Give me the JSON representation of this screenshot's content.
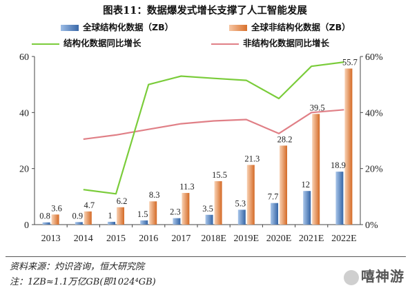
{
  "title": "图表11：数据爆发式增长支撑了人工智能发展",
  "colors": {
    "bar1": "#4a7ab8",
    "bar2": "#e0834a",
    "line1": "#7acc3a",
    "line2": "#e07f86"
  },
  "footer": {
    "source": "资料来源：灼识咨询，恒大研究院",
    "note": "注：1ZB≈1.1万亿GB(即1024⁴GB)"
  },
  "watermark": "嘻神游",
  "chart_data": {
    "type": "bar+line",
    "categories": [
      "2013",
      "2014",
      "2015",
      "2016",
      "2017",
      "2018E",
      "2019E",
      "2020E",
      "2021E",
      "2022E"
    ],
    "series": [
      {
        "name": "全球结构化数据（ZB）",
        "type": "bar",
        "axis": "left",
        "values": [
          0.8,
          0.9,
          1,
          1.5,
          2.3,
          3.5,
          5.3,
          7.7,
          12,
          18.9
        ],
        "labels": [
          "0.8",
          "0.9",
          "1",
          "1.5",
          "2.3",
          "3.5",
          "5.3",
          "7.7",
          "12",
          "18.9"
        ]
      },
      {
        "name": "全球非结构化数据（ZB）",
        "type": "bar",
        "axis": "left",
        "values": [
          3.6,
          4.7,
          6.2,
          8.3,
          11.3,
          15.5,
          21.3,
          28.2,
          39.5,
          55.7
        ],
        "labels": [
          "3.6",
          "4.7",
          "6.2",
          "8.3",
          "11.3",
          "15.5",
          "21.3",
          "28.2",
          "39.5",
          "55.7"
        ]
      },
      {
        "name": "结构化数据同比增长",
        "type": "line",
        "axis": "right",
        "values": [
          null,
          12.5,
          11,
          50,
          53,
          52.2,
          51.5,
          45,
          56.5,
          58
        ]
      },
      {
        "name": "非结构化数据同比增长",
        "type": "line",
        "axis": "right",
        "values": [
          null,
          30.5,
          32,
          34,
          36,
          37,
          37.5,
          32.5,
          40,
          41
        ]
      }
    ],
    "y_left": {
      "ylim": [
        0,
        60
      ],
      "ticks": [
        "0",
        "20",
        "40",
        "60"
      ]
    },
    "y_right": {
      "ylim": [
        0,
        60
      ],
      "ticks": [
        "0%",
        "20%",
        "40%",
        "60%"
      ]
    },
    "legend_position": "top"
  }
}
